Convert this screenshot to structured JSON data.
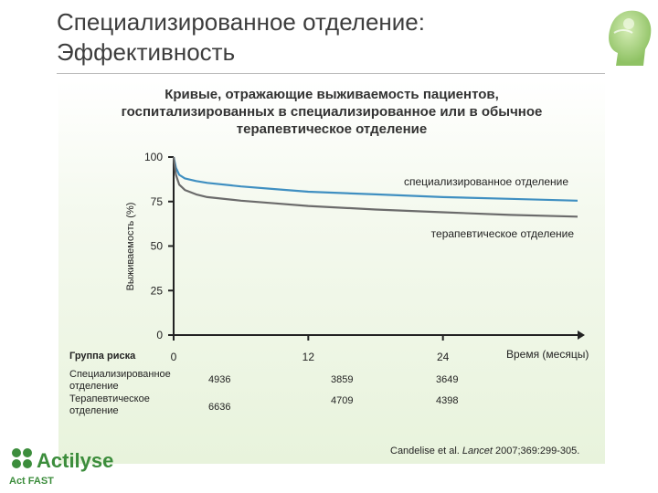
{
  "slide": {
    "title_line1": "Специализированное отделение:",
    "title_line2": "Эффективность"
  },
  "chart_data": {
    "type": "line",
    "title_lines": [
      "Кривые, отражающие выживаемость пациентов,",
      "госпитализированных в специализированное или в обычное",
      "терапевтическое отделение"
    ],
    "xlabel": "Время (месяцы)",
    "ylabel": "Выживаемость (%)",
    "x_ticks": [
      0,
      12,
      24
    ],
    "y_ticks": [
      0,
      25,
      50,
      75,
      100
    ],
    "xlim": [
      0,
      36
    ],
    "ylim": [
      0,
      100
    ],
    "series": [
      {
        "name": "специализированное отделение",
        "color": "#3f8fc1",
        "x": [
          0,
          0.2,
          0.5,
          1,
          2,
          3,
          6,
          9,
          12,
          18,
          24,
          30,
          36
        ],
        "y": [
          100,
          94,
          90,
          88,
          86.5,
          85.5,
          83.5,
          82,
          80.5,
          79,
          77.5,
          76.5,
          75.5
        ]
      },
      {
        "name": "терапевтическое отделение",
        "color": "#6b6b6b",
        "x": [
          0,
          0.2,
          0.5,
          1,
          2,
          3,
          6,
          9,
          12,
          18,
          24,
          30,
          36
        ],
        "y": [
          100,
          90,
          84.5,
          81.5,
          79,
          77.5,
          75.5,
          74,
          72.5,
          70.5,
          69,
          67.5,
          66.5
        ]
      }
    ],
    "risk_table": {
      "header": "Группа риска",
      "rows": [
        {
          "label_lines": [
            "Специализированное",
            "отделение"
          ],
          "values": [
            "4936",
            "3859",
            "3649"
          ]
        },
        {
          "label_lines": [
            "Терапевтическое",
            "отделение"
          ],
          "values": [
            "6636",
            "4709",
            "4398"
          ]
        }
      ]
    },
    "citation": {
      "authors": "Candelise et al.",
      "journal": "Lancet",
      "details": "2007;369:299-305."
    }
  },
  "brand": {
    "name": "Actilyse",
    "tagline": "Act FAST",
    "color": "#3c8d3c"
  }
}
